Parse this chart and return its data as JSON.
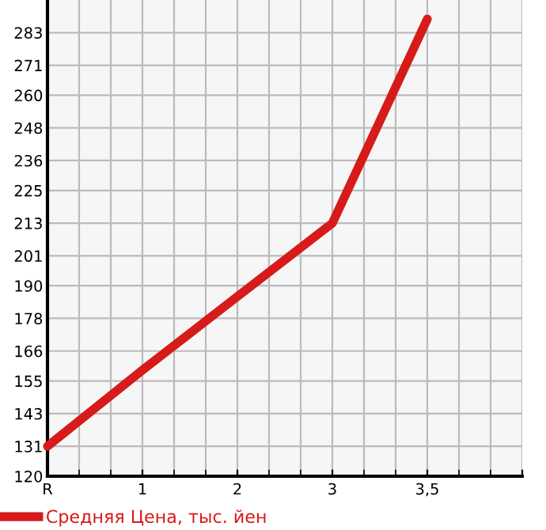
{
  "chart_data": {
    "type": "line",
    "categories": [
      "R",
      "1",
      "2",
      "3",
      "3,5",
      null
    ],
    "series": [
      {
        "name": "Средняя Цена, тыс. йен",
        "color": "#d71a1a",
        "values": [
          131,
          159,
          186,
          213,
          288,
          null
        ]
      }
    ],
    "ylim": [
      120,
      295
    ],
    "yticks": [
      120,
      131,
      143,
      155,
      166,
      178,
      190,
      201,
      213,
      225,
      236,
      248,
      260,
      271,
      283
    ],
    "grid": true,
    "legend": "bottom left",
    "marker": "none",
    "line_style": "solid"
  }
}
